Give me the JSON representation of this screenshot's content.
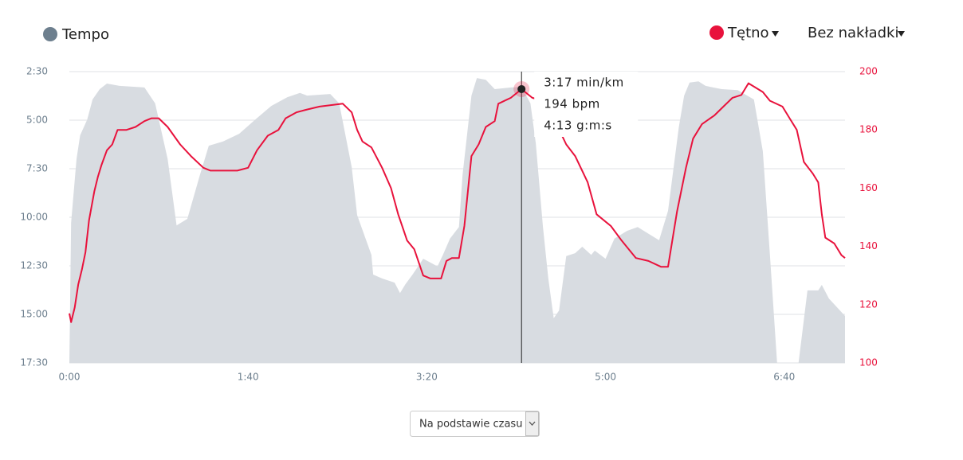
{
  "chart_data": {
    "type": "line",
    "xlim": [
      0,
      434
    ],
    "xticks": [
      {
        "value": 0,
        "label": "0:00"
      },
      {
        "value": 100,
        "label": "1:40"
      },
      {
        "value": 200,
        "label": "3:20"
      },
      {
        "value": 300,
        "label": "5:00"
      },
      {
        "value": 400,
        "label": "6:40"
      }
    ],
    "ylim": [
      1050,
      150
    ],
    "yticks": [
      {
        "value": 150,
        "label": "2:30"
      },
      {
        "value": 300,
        "label": "5:00"
      },
      {
        "value": 450,
        "label": "7:30"
      },
      {
        "value": 600,
        "label": "10:00"
      },
      {
        "value": 750,
        "label": "12:30"
      },
      {
        "value": 900,
        "label": "15:00"
      },
      {
        "value": 1050,
        "label": "17:30"
      }
    ],
    "y2lim": [
      100,
      200
    ],
    "y2ticks": [
      100,
      120,
      140,
      160,
      180,
      200
    ],
    "grid": true,
    "overlay": "Bez nakładki",
    "series": [
      {
        "name": "Tempo",
        "color": "#d8dce1",
        "legend_color": "#6d7f8e",
        "style": "area",
        "x": [
          0,
          1,
          4,
          6,
          10,
          13,
          17,
          21,
          28,
          42,
          48,
          55,
          60,
          66,
          73,
          78,
          86,
          95,
          104,
          113,
          122,
          129,
          133,
          146,
          151,
          158,
          161,
          169,
          170,
          175,
          182,
          185,
          188,
          192,
          198,
          202,
          206,
          209,
          213,
          218,
          220,
          225,
          228,
          233,
          238,
          247,
          253,
          258,
          261,
          265,
          268,
          271,
          274,
          278,
          283,
          287,
          292,
          294,
          300,
          305,
          312,
          318,
          325,
          330,
          335,
          341,
          344,
          347,
          352,
          356,
          365,
          374,
          383,
          388,
          392,
          396,
          408,
          413,
          419,
          421,
          425,
          434
        ],
        "values": [
          1050,
          617,
          420,
          347,
          298,
          236,
          204,
          187,
          194,
          199,
          248,
          420,
          625,
          605,
          470,
          379,
          366,
          342,
          298,
          256,
          229,
          216,
          224,
          219,
          248,
          445,
          593,
          716,
          777,
          789,
          802,
          834,
          807,
          777,
          728,
          740,
          752,
          716,
          666,
          630,
          470,
          224,
          170,
          175,
          204,
          199,
          197,
          248,
          371,
          630,
          789,
          912,
          888,
          720,
          711,
          691,
          716,
          703,
          728,
          666,
          642,
          630,
          654,
          671,
          580,
          322,
          224,
          184,
          180,
          194,
          204,
          207,
          236,
          396,
          716,
          1050,
          1050,
          826,
          826,
          809,
          851,
          905
        ]
      },
      {
        "name": "Tętno",
        "color": "#e8123c",
        "axis": "y2",
        "x": [
          0,
          1,
          3,
          5,
          7,
          9,
          11,
          14,
          16,
          18,
          21,
          24,
          27,
          32,
          37,
          42,
          46,
          50,
          55,
          62,
          68,
          75,
          79,
          94,
          100,
          105,
          111,
          117,
          121,
          127,
          133,
          140,
          153,
          158,
          161,
          164,
          169,
          175,
          180,
          184,
          189,
          193,
          198,
          202,
          208,
          211,
          214,
          218,
          221,
          225,
          229,
          233,
          238,
          240,
          247,
          253,
          259,
          265,
          271,
          278,
          283,
          290,
          295,
          303,
          309,
          317,
          324,
          331,
          335,
          340,
          345,
          349,
          354,
          361,
          366,
          371,
          376,
          380,
          388,
          392,
          399,
          403,
          407,
          411,
          416,
          419,
          421,
          423,
          428,
          432,
          434
        ],
        "values": [
          117,
          114,
          119,
          127,
          132,
          138,
          149,
          159,
          164,
          168,
          173,
          175,
          180,
          180,
          181,
          183,
          184,
          184,
          181,
          175,
          171,
          167,
          166,
          166,
          167,
          173,
          178,
          180,
          184,
          186,
          187,
          188,
          189,
          186,
          180,
          176,
          174,
          167,
          160,
          151,
          142,
          139,
          130,
          129,
          129,
          135,
          136,
          136,
          147,
          171,
          175,
          181,
          183,
          189,
          191,
          194,
          191,
          190,
          184,
          175,
          171,
          162,
          151,
          147,
          142,
          136,
          135,
          133,
          133,
          152,
          167,
          177,
          182,
          185,
          188,
          191,
          192,
          196,
          193,
          190,
          188,
          184,
          180,
          169,
          165,
          162,
          151,
          143,
          141,
          137,
          136
        ]
      }
    ],
    "tooltip": {
      "x": 253,
      "hr": 194,
      "lines": [
        "3:17 min/km",
        "194 bpm",
        "4:13 g:m:s"
      ]
    },
    "basis": "Na podstawie czasu"
  }
}
